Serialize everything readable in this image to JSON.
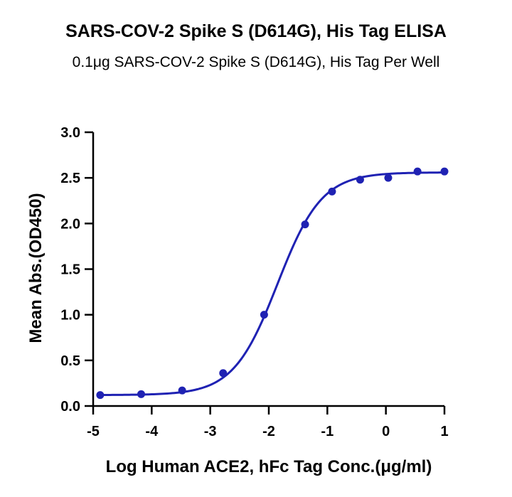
{
  "chart_data": {
    "type": "scatter",
    "title": "SARS-COV-2 Spike S (D614G), His Tag ELISA",
    "subtitle": "0.1μg SARS-COV-2 Spike S (D614G), His Tag Per Well",
    "xlabel": "Log Human ACE2, hFc Tag Conc.(μg/ml)",
    "ylabel": "Mean Abs.(OD450)",
    "xlim": [
      -5,
      1
    ],
    "ylim": [
      0,
      3.0
    ],
    "x_ticks": [
      "-5",
      "-4",
      "-3",
      "-2",
      "-1",
      "0",
      "1"
    ],
    "y_ticks": [
      "0.0",
      "0.5",
      "1.0",
      "1.5",
      "2.0",
      "2.5",
      "3.0"
    ],
    "grid": false,
    "legend": "none",
    "series": [
      {
        "x": [
          -4.88,
          -4.18,
          -3.48,
          -2.78,
          -2.08,
          -1.38,
          -0.92,
          -0.44,
          0.04,
          0.54,
          1.0
        ],
        "y": [
          0.12,
          0.13,
          0.17,
          0.36,
          1.0,
          1.99,
          2.35,
          2.48,
          2.5,
          2.57,
          2.57
        ]
      }
    ],
    "fit_curve": {
      "model": "4PL sigmoid",
      "bottom": 0.12,
      "top": 2.56,
      "ec50_log": -1.85,
      "hill": 1.15
    },
    "color": "#1f22b3"
  }
}
